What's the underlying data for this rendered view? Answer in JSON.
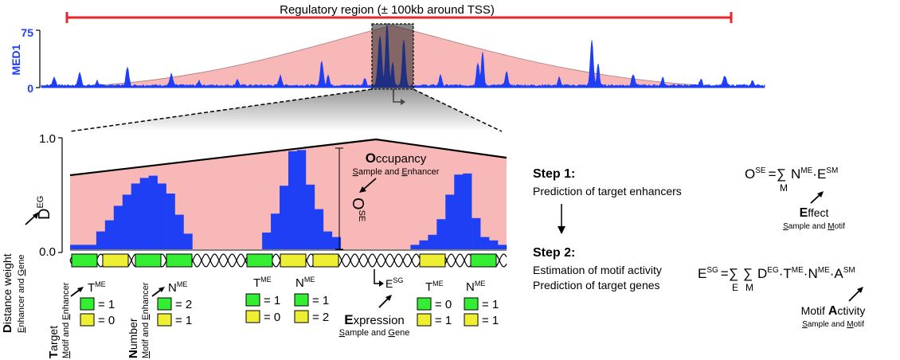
{
  "top_panel": {
    "region_label": "Regulatory region (± 100kb around TSS)",
    "y_axis_label": "MED1",
    "y_max_tick": "75",
    "y_min_tick": "0"
  },
  "zoom_panel": {
    "y_max_tick": "1.0",
    "y_min_tick": "0.0",
    "distance_weight": {
      "word1": "D",
      "word2": "istance weight",
      "sub1": "E",
      "sub2": "nhancer and ",
      "sub3": "G",
      "sub4": "ene"
    },
    "deg": {
      "base": "D",
      "sup": "EG"
    },
    "occupancy": {
      "cap": "O",
      "rest": "ccupancy",
      "sub1": "S",
      "sub2": "ample and ",
      "sub3": "E",
      "sub4": "nhancer"
    },
    "ose_vertical": {
      "base": "O",
      "sup": "SE"
    }
  },
  "legend_groups": [
    {
      "t_base": "T",
      "t_sup": "ME",
      "green": "= 1",
      "yellow": "= 0",
      "n_base": "N",
      "n_sup": "ME",
      "n_green": "= 2",
      "n_yellow": "= 1"
    },
    {
      "t_base": "T",
      "t_sup": "ME",
      "green": "= 1",
      "yellow": "= 0",
      "n_base": "N",
      "n_sup": "ME",
      "n_green": "= 1",
      "n_yellow": "= 2"
    },
    {
      "t_base": "T",
      "t_sup": "ME",
      "green": "= 0",
      "yellow": "= 1",
      "n_base": "N",
      "n_sup": "ME",
      "n_green": "= 1",
      "n_yellow": "= 1"
    }
  ],
  "vertical_labels": {
    "target": {
      "cap": "T",
      "rest": "arget",
      "sub1": "M",
      "sub2": "otif and ",
      "sub3": "E",
      "sub4": "nhancer"
    },
    "number": {
      "cap": "N",
      "rest": "umber",
      "sub1": "M",
      "sub2": "otif and ",
      "sub3": "E",
      "sub4": "nhancer"
    }
  },
  "expression": {
    "esg_base": "E",
    "esg_sup": "SG",
    "cap": "E",
    "rest": "xpression",
    "sub1": "S",
    "sub2": "ample and ",
    "sub3": "G",
    "sub4": "ene"
  },
  "steps": {
    "step1_title": "Step 1:",
    "step1_desc": "Prediction of target enhancers",
    "step2_title": "Step 2:",
    "step2_desc1": "Estimation of motif activity",
    "step2_desc2": "Prediction of target genes"
  },
  "formula1": {
    "lhs": "O",
    "lhs_sup": "SE",
    "eq": "=",
    "sum": "∑",
    "sum_sub": "M",
    "n": "N",
    "n_sup": "ME",
    "dot": "·",
    "e": "E",
    "e_sup": "SM"
  },
  "effect": {
    "cap": "E",
    "rest": "ffect",
    "sub1": "S",
    "sub2": "ample and ",
    "sub3": "M",
    "sub4": "otif"
  },
  "formula2": {
    "lhs": "E",
    "lhs_sup": "SG",
    "eq": "=",
    "sum1": "∑",
    "sum1_sub": "E",
    "sum2": "∑",
    "sum2_sub": "M",
    "d": "D",
    "d_sup": "EG",
    "t": "T",
    "t_sup": "ME",
    "n": "N",
    "n_sup": "ME",
    "a": "A",
    "a_sup": "SM",
    "dot": "·"
  },
  "motif_activity": {
    "w1": "Motif ",
    "cap": "A",
    "rest": "ctivity",
    "sub1": "S",
    "sub2": "ample and ",
    "sub3": "M",
    "sub4": "otif"
  },
  "colors": {
    "signal": "#1f3ff5",
    "fill": "#f9b8b8",
    "region_bar": "#e8272a",
    "motif_green": "#33ee33",
    "motif_yellow": "#eeee33"
  },
  "zoom_bars": [
    0.04,
    0.04,
    0.04,
    0.16,
    0.26,
    0.39,
    0.49,
    0.59,
    0.64,
    0.66,
    0.59,
    0.5,
    0.31,
    0.14,
    0,
    0,
    0,
    0,
    0,
    0,
    0,
    0,
    0.15,
    0.32,
    0.57,
    0.88,
    0.89,
    0.58,
    0.36,
    0.16,
    0.11,
    0,
    0,
    0,
    0,
    0,
    0,
    0,
    0,
    0.04,
    0.08,
    0.13,
    0.27,
    0.49,
    0.67,
    0.68,
    0.28,
    0.11,
    0.08,
    0.04
  ]
}
